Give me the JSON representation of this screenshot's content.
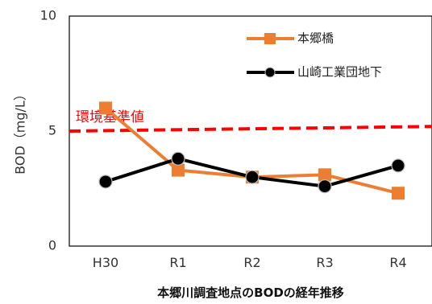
{
  "chart_data": {
    "type": "line",
    "categories": [
      "H30",
      "R1",
      "R2",
      "R3",
      "R4"
    ],
    "series": [
      {
        "name": "本郷橋",
        "color": "#ED7D31",
        "marker": "square",
        "values": [
          6.0,
          3.3,
          3.0,
          3.1,
          2.3
        ]
      },
      {
        "name": "山崎工業団地下",
        "color": "#000000",
        "marker": "circle",
        "values": [
          2.8,
          3.8,
          3.0,
          2.6,
          3.5
        ]
      }
    ],
    "reference_line": {
      "label": "環境基準値",
      "y_start": 5.0,
      "y_end": 5.2,
      "color": "#FF0000",
      "style": "dashed"
    },
    "ylabel": "BOD（mg/L）",
    "xlabel": "",
    "ylim": [
      0,
      10
    ],
    "yticks": [
      "0",
      "5",
      "10"
    ],
    "grid": false,
    "legend_position": "top-right",
    "caption": "本郷川調査地点のBODの経年推移"
  }
}
